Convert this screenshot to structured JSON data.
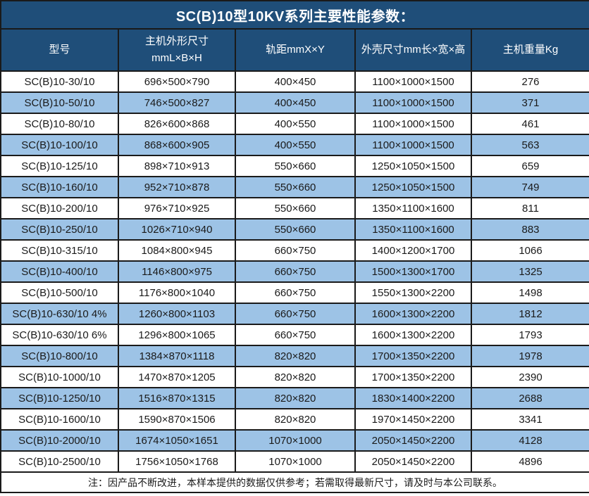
{
  "title": "SC(B)10型10KV系列主要性能参数：",
  "table": {
    "columns": [
      "型号",
      "主机外形尺寸\nmmL×B×H",
      "轨距mmX×Y",
      "外壳尺寸mm长×宽×高",
      "主机重量Kg"
    ],
    "rows": [
      [
        "SC(B)10-30/10",
        "696×500×790",
        "400×450",
        "1100×1000×1500",
        "276"
      ],
      [
        "SC(B)10-50/10",
        "746×500×827",
        "400×450",
        "1100×1000×1500",
        "371"
      ],
      [
        "SC(B)10-80/10",
        "826×600×868",
        "400×550",
        "1100×1000×1500",
        "461"
      ],
      [
        "SC(B)10-100/10",
        "868×600×905",
        "400×550",
        "1100×1000×1500",
        "563"
      ],
      [
        "SC(B)10-125/10",
        "898×710×913",
        "550×660",
        "1250×1050×1500",
        "659"
      ],
      [
        "SC(B)10-160/10",
        "952×710×878",
        "550×660",
        "1250×1050×1500",
        "749"
      ],
      [
        "SC(B)10-200/10",
        "976×710×925",
        "550×660",
        "1350×1100×1600",
        "811"
      ],
      [
        "SC(B)10-250/10",
        "1026×710×940",
        "550×660",
        "1350×1100×1600",
        "883"
      ],
      [
        "SC(B)10-315/10",
        "1084×800×945",
        "660×750",
        "1400×1200×1700",
        "1066"
      ],
      [
        "SC(B)10-400/10",
        "1146×800×975",
        "660×750",
        "1500×1300×1700",
        "1325"
      ],
      [
        "SC(B)10-500/10",
        "1176×800×1040",
        "660×750",
        "1550×1300×2200",
        "1498"
      ],
      [
        "SC(B)10-630/10 4%",
        "1260×800×1103",
        "660×750",
        "1600×1300×2200",
        "1812"
      ],
      [
        "SC(B)10-630/10 6%",
        "1296×800×1065",
        "660×750",
        "1600×1300×2200",
        "1793"
      ],
      [
        "SC(B)10-800/10",
        "1384×870×1118",
        "820×820",
        "1700×1350×2200",
        "1978"
      ],
      [
        "SC(B)10-1000/10",
        "1470×870×1205",
        "820×820",
        "1700×1350×2200",
        "2390"
      ],
      [
        "SC(B)10-1250/10",
        "1516×870×1315",
        "820×820",
        "1830×1400×2200",
        "2688"
      ],
      [
        "SC(B)10-1600/10",
        "1590×870×1506",
        "820×820",
        "1970×1450×2200",
        "3341"
      ],
      [
        "SC(B)10-2000/10",
        "1674×1050×1651",
        "1070×1000",
        "2050×1450×2200",
        "4128"
      ],
      [
        "SC(B)10-2500/10",
        "1756×1050×1768",
        "1070×1000",
        "2050×1450×2200",
        "4896"
      ]
    ]
  },
  "note": "注：因产品不断改进，本样本提供的数据仅供参考；若需取得最新尺寸，请及时与本公司联系。",
  "colors": {
    "header_bg": "#1f4e79",
    "row_alt_bg": "#9dc3e6",
    "border": "#1a1a1a",
    "header_text": "#ffffff",
    "cell_text": "#1a1a1a"
  }
}
